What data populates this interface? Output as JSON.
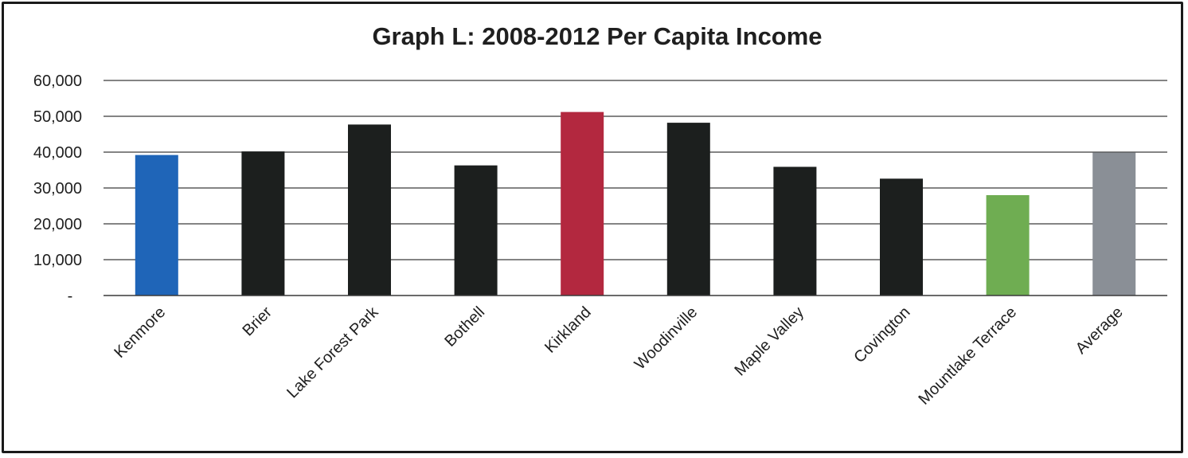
{
  "chart_data": {
    "type": "bar",
    "title": "Graph L: 2008-2012 Per Capita Income",
    "xlabel": "",
    "ylabel": "",
    "ylim": [
      0,
      60000
    ],
    "grid": true,
    "legend": "none",
    "y_ticks": [
      {
        "value": 0,
        "label": "-"
      },
      {
        "value": 10000,
        "label": "10,000"
      },
      {
        "value": 20000,
        "label": "20,000"
      },
      {
        "value": 30000,
        "label": "30,000"
      },
      {
        "value": 40000,
        "label": "40,000"
      },
      {
        "value": 50000,
        "label": "50,000"
      },
      {
        "value": 60000,
        "label": "60,000"
      }
    ],
    "categories": [
      "Kenmore",
      "Brier",
      "Lake Forest Park",
      "Bothell",
      "Kirkland",
      "Woodinville",
      "Maple Valley",
      "Covington",
      "Mountlake Terrace",
      "Average"
    ],
    "values": [
      39200,
      40200,
      47700,
      36300,
      51200,
      48200,
      35900,
      32600,
      28000,
      39900
    ],
    "colors": [
      "#1f65b8",
      "#1c1f1e",
      "#1c1f1e",
      "#1c1f1e",
      "#b3283f",
      "#1c1f1e",
      "#1c1f1e",
      "#1c1f1e",
      "#6fad52",
      "#8a8f96"
    ]
  }
}
